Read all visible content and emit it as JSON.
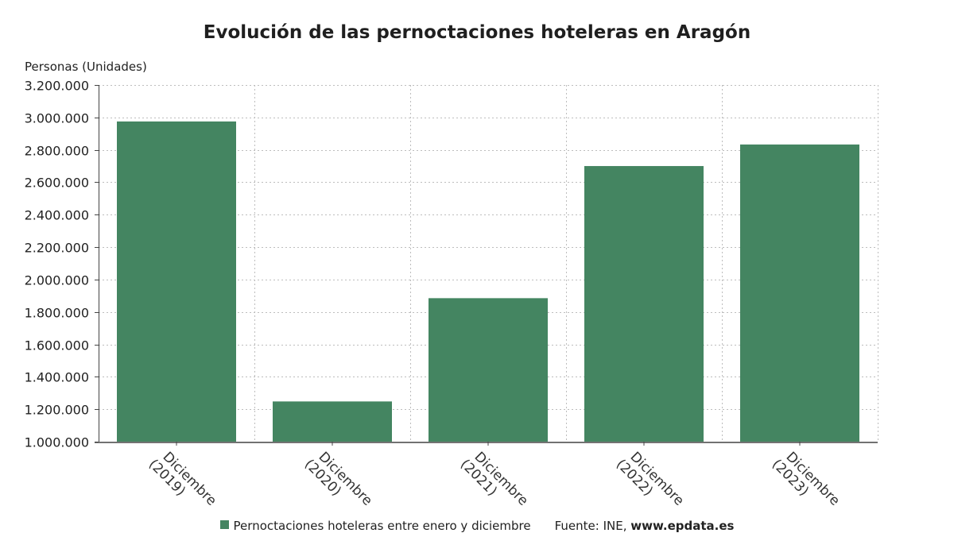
{
  "chart_data": {
    "type": "bar",
    "title": "Evolución de las pernoctaciones hoteleras en Aragón",
    "ylabel": "Personas (Unidades)",
    "xlabel": "",
    "categories": [
      [
        "Diciembre",
        "(2019)"
      ],
      [
        "Diciembre",
        "(2020)"
      ],
      [
        "Diciembre",
        "(2021)"
      ],
      [
        "Diciembre",
        "(2022)"
      ],
      [
        "Diciembre",
        "(2023)"
      ]
    ],
    "series": [
      {
        "name": "Pernoctaciones hoteleras entre enero y diciembre",
        "values": [
          2975000,
          1248000,
          1885000,
          2700000,
          2833000
        ],
        "color": "#448561"
      }
    ],
    "ylim": [
      1000000,
      3200000
    ],
    "yticks": [
      1000000,
      1200000,
      1400000,
      1600000,
      1800000,
      2000000,
      2200000,
      2400000,
      2600000,
      2800000,
      3000000,
      3200000
    ],
    "ytick_labels": [
      "1.000.000",
      "1.200.000",
      "1.400.000",
      "1.600.000",
      "1.800.000",
      "2.000.000",
      "2.200.000",
      "2.400.000",
      "2.600.000",
      "2.800.000",
      "3.000.000",
      "3.200.000"
    ],
    "grid": true,
    "legend_position": "bottom"
  },
  "source": {
    "prefix": "Fuente: INE,",
    "site": "www.epdata.es"
  }
}
